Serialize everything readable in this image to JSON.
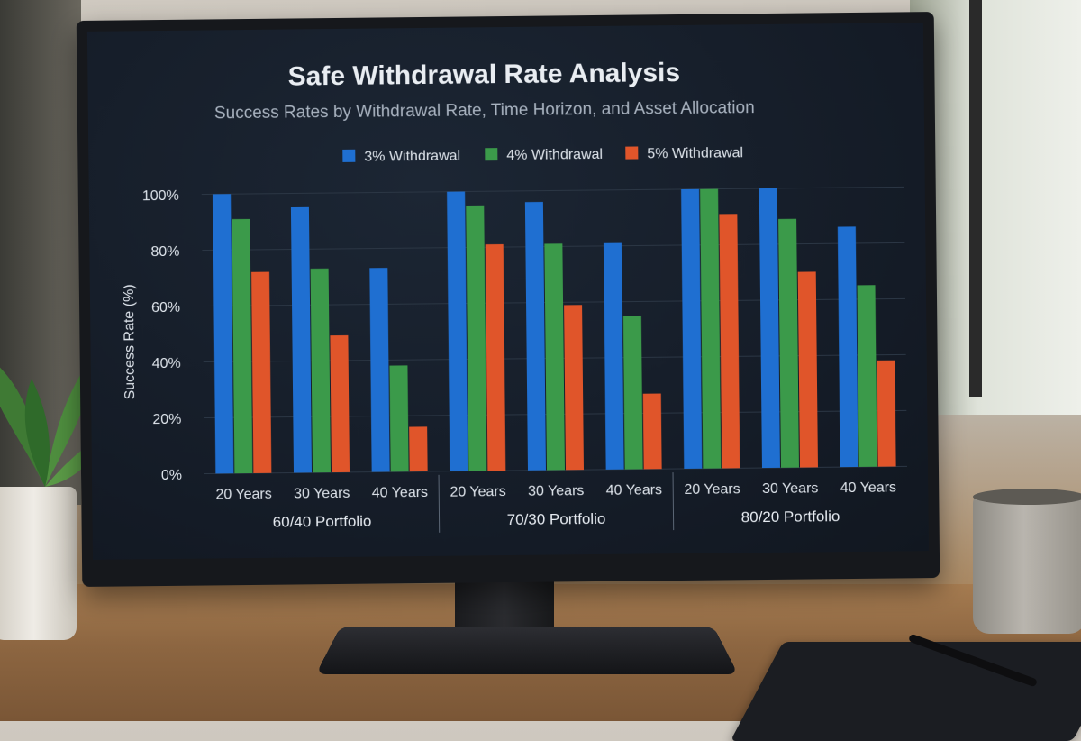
{
  "chart_data": {
    "type": "bar",
    "title": "Safe Withdrawal Rate Analysis",
    "subtitle": "Success Rates by Withdrawal Rate, Time Horizon, and Asset Allocation",
    "xlabel": "",
    "ylabel": "Success Rate (%)",
    "ylim": [
      0,
      100
    ],
    "yticks": [
      "0%",
      "20%",
      "40%",
      "60%",
      "80%",
      "100%"
    ],
    "grid": true,
    "legend_position": "top-center",
    "groups": [
      {
        "name": "60/40 Portfolio",
        "categories": [
          "20 Years",
          "30 Years",
          "40 Years"
        ]
      },
      {
        "name": "70/30 Portfolio",
        "categories": [
          "20 Years",
          "30 Years",
          "40 Years"
        ]
      },
      {
        "name": "80/20 Portfolio",
        "categories": [
          "20 Years",
          "30 Years",
          "40 Years"
        ]
      }
    ],
    "series": [
      {
        "name": "3% Withdrawal",
        "color": "#1f6fd1",
        "values": [
          100,
          95,
          73,
          100,
          96,
          81,
          100,
          100,
          86
        ]
      },
      {
        "name": "4% Withdrawal",
        "color": "#3b9a4a",
        "values": [
          91,
          73,
          38,
          95,
          81,
          55,
          100,
          89,
          65
        ]
      },
      {
        "name": "5% Withdrawal",
        "color": "#e0552a",
        "values": [
          72,
          49,
          16,
          81,
          59,
          27,
          91,
          70,
          38
        ]
      }
    ]
  }
}
